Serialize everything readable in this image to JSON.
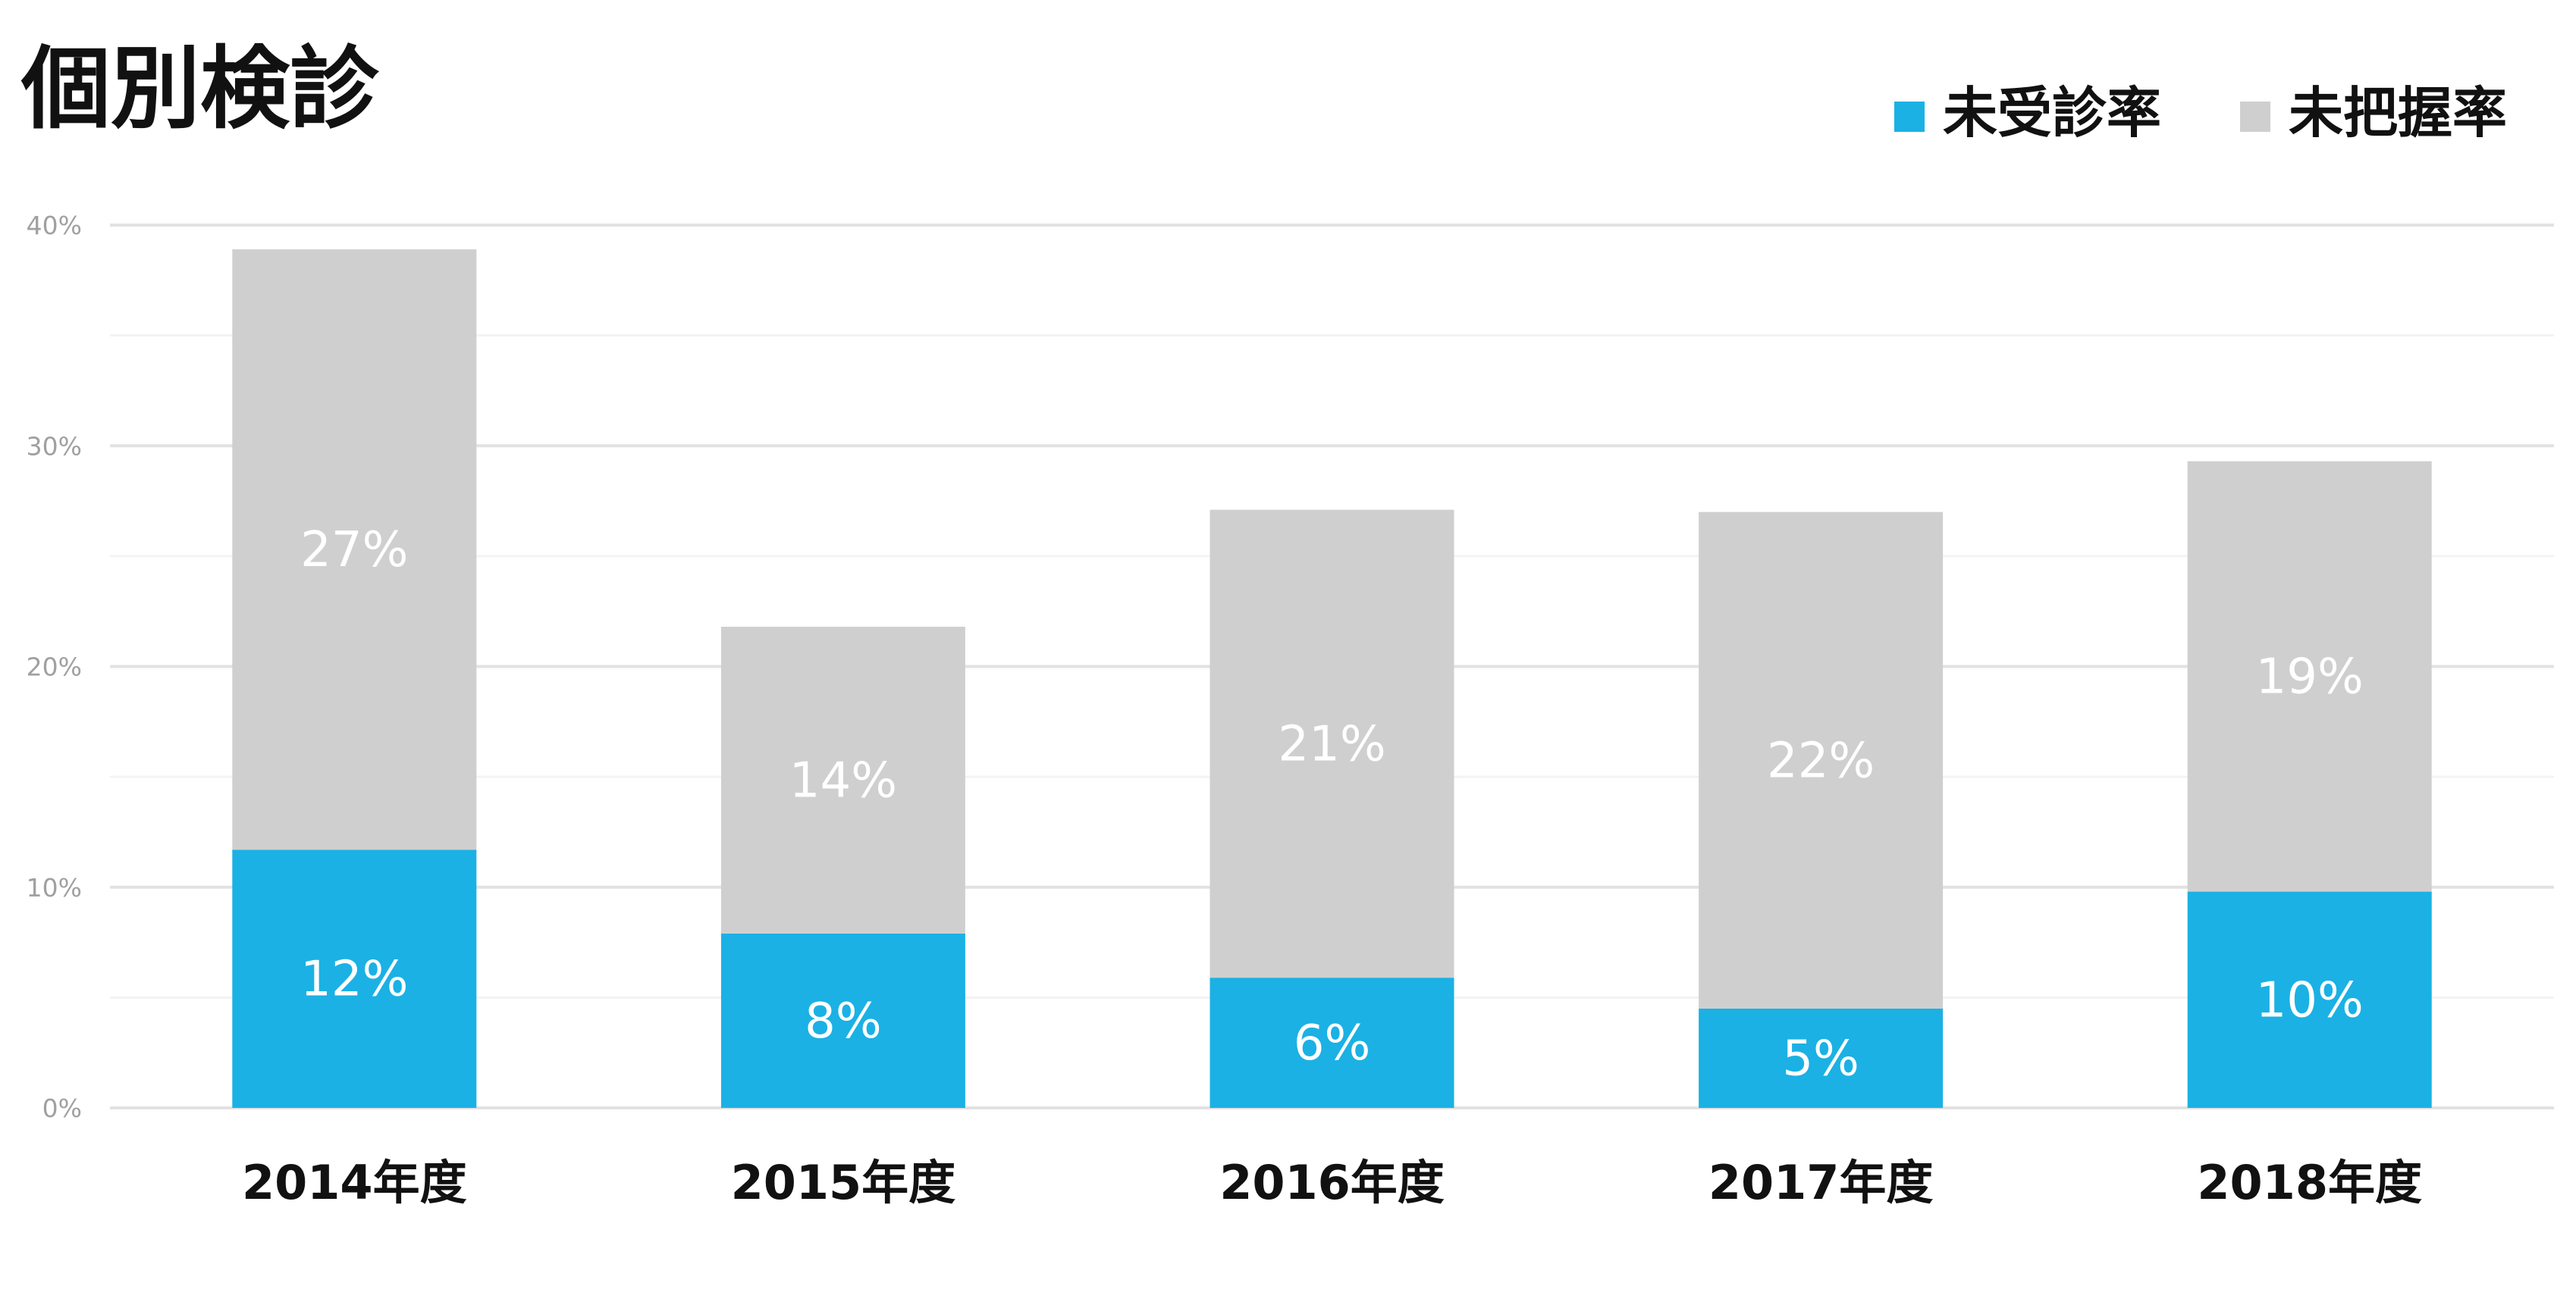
{
  "chart_data": {
    "type": "bar",
    "stacked": true,
    "title": "個別検診",
    "categories": [
      "2014年度",
      "2015年度",
      "2016年度",
      "2017年度",
      "2018年度"
    ],
    "series": [
      {
        "name": "未受診率",
        "values": [
          12,
          8,
          6,
          5,
          10
        ],
        "labels": [
          "12%",
          "8%",
          "6%",
          "5%",
          "10%"
        ],
        "plot_values": [
          11.7,
          7.9,
          5.9,
          4.5,
          9.8
        ],
        "color": "#1bb1e4"
      },
      {
        "name": "未把握率",
        "values": [
          27,
          14,
          21,
          22,
          19
        ],
        "labels": [
          "27%",
          "14%",
          "21%",
          "22%",
          "19%"
        ],
        "plot_values": [
          27.2,
          13.9,
          21.2,
          22.5,
          19.5
        ],
        "color": "#d0cfd0"
      }
    ],
    "ylim": [
      0,
      40
    ],
    "yticks": [
      "0%",
      "10%",
      "20%",
      "30%",
      "40%"
    ],
    "ytick_values": [
      0,
      10,
      20,
      30,
      40
    ],
    "grid": true,
    "legend_position": "top-right"
  }
}
